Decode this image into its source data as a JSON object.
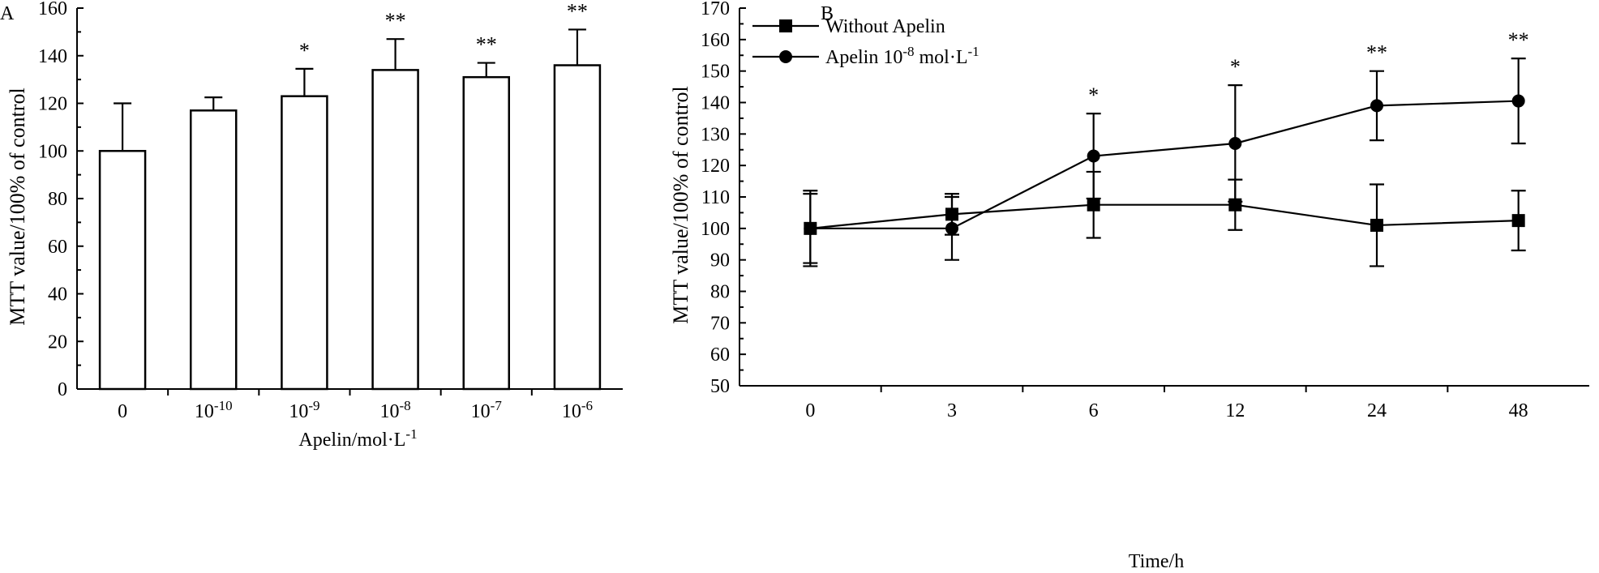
{
  "chart_data": [
    {
      "panel": "A",
      "type": "bar",
      "categories": [
        {
          "base": "0",
          "exp": ""
        },
        {
          "base": "10",
          "exp": "-10"
        },
        {
          "base": "10",
          "exp": "-9"
        },
        {
          "base": "10",
          "exp": "-8"
        },
        {
          "base": "10",
          "exp": "-7"
        },
        {
          "base": "10",
          "exp": "-6"
        }
      ],
      "values": [
        100,
        117,
        123,
        134,
        131,
        136
      ],
      "errors": [
        20,
        5.5,
        11.5,
        13,
        6,
        15
      ],
      "significance": [
        "",
        "",
        "*",
        "**",
        "**",
        "**"
      ],
      "ylabel": "MTT value/100% of control",
      "xlabel": {
        "base": "Apelin/mol·L",
        "exp": "-1"
      },
      "ylim": [
        0,
        160
      ],
      "yticks": [
        0,
        20,
        40,
        60,
        80,
        100,
        120,
        140,
        160
      ]
    },
    {
      "panel": "B",
      "type": "line",
      "categories": [
        "0",
        "3",
        "6",
        "12",
        "24",
        "48"
      ],
      "series": [
        {
          "name": "Without Apelin",
          "legend": {
            "base": "Without Apelin",
            "exp": "",
            "unit": ""
          },
          "marker": "square",
          "values": [
            100,
            104.5,
            107.5,
            107.5,
            101,
            102.5
          ],
          "errors": [
            12,
            6.5,
            10.5,
            8,
            13,
            9.5
          ]
        },
        {
          "name": "Apelin 10-8 mol·L-1",
          "legend": {
            "base": "Apelin 10",
            "exp": "-8",
            "unit": " mol·L",
            "exp2": "-1"
          },
          "marker": "circle",
          "values": [
            100,
            100,
            123,
            127,
            139,
            140.5
          ],
          "errors": [
            11,
            10,
            13.5,
            18.5,
            11,
            13.5
          ]
        }
      ],
      "significance": [
        "",
        "",
        "*",
        "*",
        "**",
        "**"
      ],
      "ylabel": "MTT value/100% of control",
      "xlabel": "Time/h",
      "ylim": [
        50,
        170
      ],
      "yticks": [
        50,
        60,
        70,
        80,
        90,
        100,
        110,
        120,
        130,
        140,
        150,
        160,
        170
      ]
    }
  ]
}
